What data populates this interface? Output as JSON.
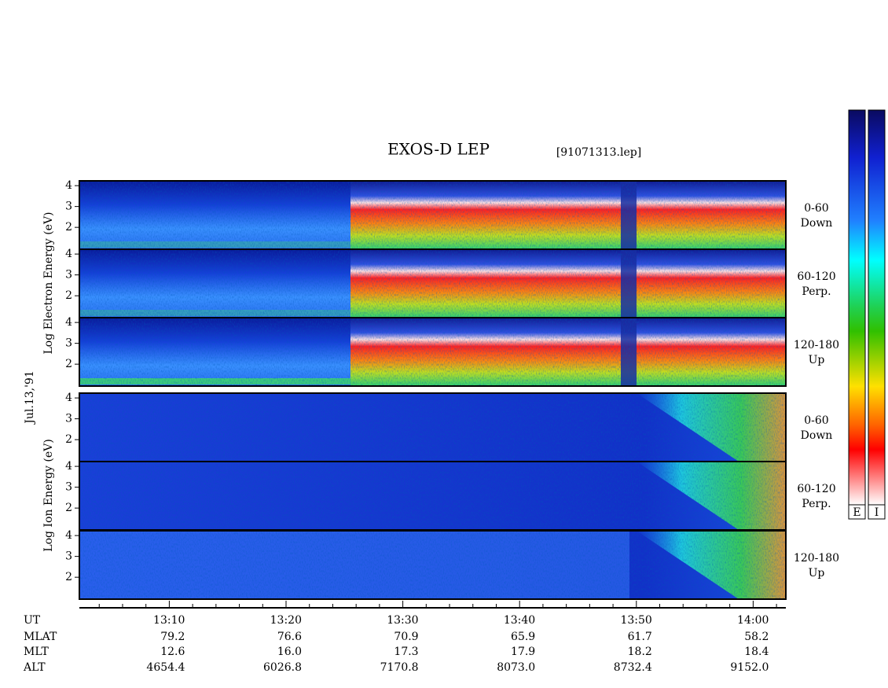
{
  "chart_data": {
    "type": "spectrogram",
    "title": "EXOS-D LEP",
    "subtitle": "[91071313.lep]",
    "date_label": "Jul.13,'91",
    "electron_label": "Log Electron Energy (eV)",
    "ion_label": "Log Ion Energy (eV)",
    "panels": [
      {
        "species": "electron",
        "label": [
          "0-60",
          "Down"
        ]
      },
      {
        "species": "electron",
        "label": [
          "60-120",
          "Perp."
        ]
      },
      {
        "species": "electron",
        "label": [
          "120-180",
          "Up"
        ]
      },
      {
        "species": "ion",
        "label": [
          "0-60",
          "Down"
        ]
      },
      {
        "species": "ion",
        "label": [
          "60-120",
          "Perp."
        ]
      },
      {
        "species": "ion",
        "label": [
          "120-180",
          "Up"
        ]
      }
    ],
    "ylim": [
      0.95,
      4.23
    ],
    "yticks": [
      2,
      3,
      4
    ],
    "xlim": [
      2.3,
      62.8
    ],
    "xticks": [
      {
        "value": 10,
        "label": "13:10"
      },
      {
        "value": 20,
        "label": "13:20"
      },
      {
        "value": 30,
        "label": "13:30"
      },
      {
        "value": 40,
        "label": "13:40"
      },
      {
        "value": 50,
        "label": "13:50"
      },
      {
        "value": 60,
        "label": "14:00"
      }
    ],
    "xminorticks": [
      4,
      6,
      8,
      12,
      14,
      16,
      18,
      22,
      24,
      26,
      28,
      32,
      34,
      36,
      38,
      42,
      44,
      46,
      48,
      52,
      54,
      56,
      58,
      62
    ],
    "ut_label": "UT",
    "orbit_table": {
      "rows": [
        {
          "name": "MLAT",
          "values": [
            "79.2",
            "76.6",
            "70.9",
            "65.9",
            "61.7",
            "58.2"
          ]
        },
        {
          "name": "MLT",
          "values": [
            "12.6",
            "16.0",
            "17.3",
            "17.9",
            "18.2",
            "18.4"
          ]
        },
        {
          "name": "ALT",
          "values": [
            "4654.4",
            "6026.8",
            "7170.8",
            "8073.0",
            "8732.4",
            "9152.0"
          ]
        }
      ]
    },
    "colorbar_labels": [
      "E",
      "I"
    ]
  }
}
